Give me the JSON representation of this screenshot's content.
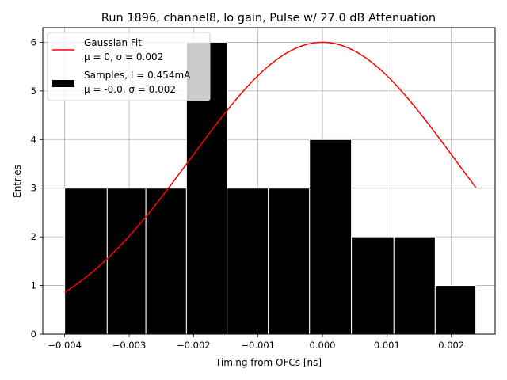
{
  "chart_data": {
    "type": "bar",
    "title": "Run 1896, channel8, lo gain, Pulse w/ 27.0 dB Attenuation",
    "xlabel": "Timing from OFCs [ns]",
    "ylabel": "Entries",
    "xlim": [
      -0.00434,
      0.00268
    ],
    "ylim": [
      0,
      6.3
    ],
    "grid": true,
    "legend_position": "top-left",
    "x_ticks": [
      {
        "value": -0.004,
        "label": "−0.004"
      },
      {
        "value": -0.003,
        "label": "−0.003"
      },
      {
        "value": -0.002,
        "label": "−0.002"
      },
      {
        "value": -0.001,
        "label": "−0.001"
      },
      {
        "value": 0.0,
        "label": "0.000"
      },
      {
        "value": 0.001,
        "label": "0.001"
      },
      {
        "value": 0.002,
        "label": "0.002"
      }
    ],
    "y_ticks": [
      {
        "value": 0,
        "label": "0"
      },
      {
        "value": 1,
        "label": "1"
      },
      {
        "value": 2,
        "label": "2"
      },
      {
        "value": 3,
        "label": "3"
      },
      {
        "value": 4,
        "label": "4"
      },
      {
        "value": 5,
        "label": "5"
      },
      {
        "value": 6,
        "label": "6"
      }
    ],
    "histogram": {
      "name": "Samples, I = 0.454mA",
      "stats": "μ = -0.0, σ = 0.002",
      "color": "#000000",
      "edge_color": "#ffffff",
      "bin_edges": [
        -0.004,
        -0.00334,
        -0.00274,
        -0.00211,
        -0.00148,
        -0.00084,
        -0.0002,
        0.00045,
        0.00111,
        0.00175,
        0.00238
      ],
      "counts": [
        3,
        3,
        3,
        6,
        3,
        3,
        4,
        2,
        2,
        1
      ]
    },
    "fit": {
      "name": "Gaussian Fit",
      "stats": "μ = 0, σ = 0.002",
      "color": "#ff0000",
      "mu": 0.0,
      "sigma": 0.00203,
      "amplitude": 6.0,
      "x_range": [
        -0.004,
        0.00238
      ]
    }
  }
}
